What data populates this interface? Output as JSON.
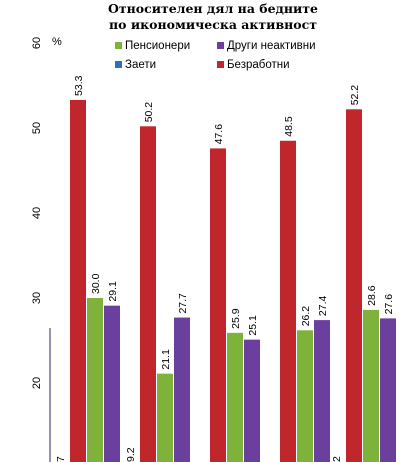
{
  "chart_data": {
    "type": "bar",
    "title": "Относителен дял на бедните",
    "subtitle": "по икономическа активност",
    "ylabel": "%",
    "ylim": [
      15,
      60
    ],
    "yticks": [
      "20",
      "30",
      "40",
      "50",
      "60"
    ],
    "categories": [
      "",
      "",
      "",
      "",
      ""
    ],
    "legend": "top",
    "grid": false,
    "series": [
      {
        "name": "Заети",
        "color": "#2e6fba",
        "values": [
          null,
          null,
          null,
          null,
          null
        ]
      },
      {
        "name": "Безработни",
        "color": "#c0272d",
        "values": [
          53.3,
          50.2,
          47.6,
          48.5,
          52.2
        ]
      },
      {
        "name": "Пенсионери",
        "color": "#7fb23a",
        "values": [
          30.0,
          21.1,
          25.9,
          26.2,
          28.6
        ]
      },
      {
        "name": "Други неактивни",
        "color": "#6a3f9e",
        "values": [
          29.1,
          27.7,
          25.1,
          27.4,
          27.6
        ]
      }
    ],
    "cropped_labels": [
      "7",
      "9.2",
      "",
      "",
      "2"
    ]
  }
}
